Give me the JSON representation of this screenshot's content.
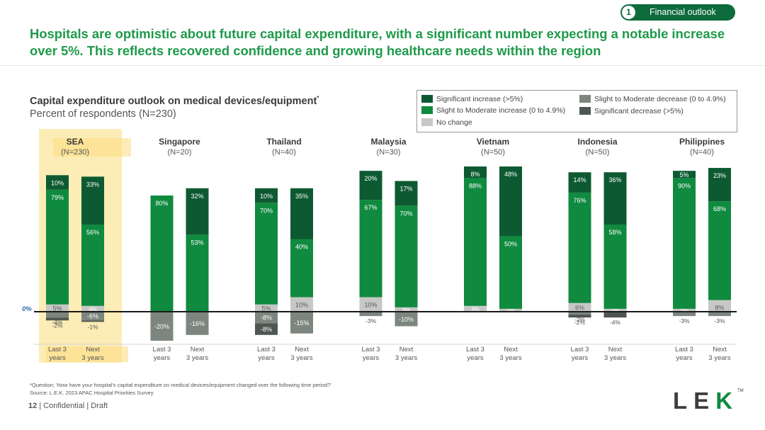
{
  "header": {
    "tag_number": "1",
    "tag_label": "Financial outlook",
    "headline": "Hospitals are optimistic about future capital expenditure, with a significant number expecting a notable increase over 5%. This reflects recovered confidence and growing healthcare needs within the region"
  },
  "colors": {
    "headline_green": "#1e9a4a",
    "significant_increase": "#0d5a32",
    "moderate_increase": "#0f8a3f",
    "no_change": "#c6c8c6",
    "moderate_decrease": "#7d857f",
    "significant_decrease": "#4e5651",
    "highlight": "#fce9a8"
  },
  "chart_data": {
    "type": "bar",
    "stacked": true,
    "title": "Capital expenditure outlook on medical devices/equipment",
    "title_marker": "*",
    "subtitle": "Percent of respondents (N=230)",
    "zero_label": "0%",
    "ylim": [
      -30,
      100
    ],
    "legend_position": "top-right",
    "legend": [
      {
        "key": "sig_inc",
        "label": "Significant increase (>5%)",
        "color": "#0d5a32"
      },
      {
        "key": "mod_inc",
        "label": "Slight to Moderate increase (0 to 4.9%)",
        "color": "#0f8a3f"
      },
      {
        "key": "no_change",
        "label": "No change",
        "color": "#c6c8c6"
      },
      {
        "key": "mod_dec",
        "label": "Slight to Moderate decrease (0 to 4.9%)",
        "color": "#7d857f"
      },
      {
        "key": "sig_dec",
        "label": "Significant decrease (>5%)",
        "color": "#4e5651"
      }
    ],
    "groups": [
      {
        "name": "SEA",
        "n": "(N=230)",
        "highlight": true,
        "bars": [
          {
            "label": [
              "Last 3",
              "years"
            ],
            "sig_inc": 10,
            "mod_inc": 79,
            "no_change": 5,
            "mod_dec": -4,
            "sig_dec": -2
          },
          {
            "label": [
              "Next",
              "3 years"
            ],
            "sig_inc": 33,
            "mod_inc": 56,
            "no_change": 4,
            "mod_dec": -6,
            "sig_dec": -1
          }
        ]
      },
      {
        "name": "Singapore",
        "n": "(N=20)",
        "highlight": false,
        "bars": [
          {
            "label": [
              "Last 3",
              "years"
            ],
            "sig_inc": 0,
            "mod_inc": 80,
            "no_change": 0,
            "mod_dec": -20,
            "sig_dec": 0
          },
          {
            "label": [
              "Next",
              "3 years"
            ],
            "sig_inc": 32,
            "mod_inc": 53,
            "no_change": 0,
            "mod_dec": -16,
            "sig_dec": 0
          }
        ]
      },
      {
        "name": "Thailand",
        "n": "(N=40)",
        "highlight": false,
        "bars": [
          {
            "label": [
              "Last 3",
              "years"
            ],
            "sig_inc": 10,
            "mod_inc": 70,
            "no_change": 5,
            "mod_dec": -8,
            "sig_dec": -8
          },
          {
            "label": [
              "Next",
              "3 years"
            ],
            "sig_inc": 35,
            "mod_inc": 40,
            "no_change": 10,
            "mod_dec": -15,
            "sig_dec": 0
          }
        ]
      },
      {
        "name": "Malaysia",
        "n": "(N=30)",
        "highlight": false,
        "bars": [
          {
            "label": [
              "Last 3",
              "years"
            ],
            "sig_inc": 20,
            "mod_inc": 67,
            "no_change": 10,
            "mod_dec": -3,
            "sig_dec": 0
          },
          {
            "label": [
              "Next",
              "3 years"
            ],
            "sig_inc": 17,
            "mod_inc": 70,
            "no_change": 3,
            "mod_dec": -10,
            "sig_dec": 0
          }
        ]
      },
      {
        "name": "Vietnam",
        "n": "(N=50)",
        "highlight": false,
        "bars": [
          {
            "label": [
              "Last 3",
              "years"
            ],
            "sig_inc": 8,
            "mod_inc": 88,
            "no_change": 4,
            "mod_dec": 0,
            "sig_dec": 0
          },
          {
            "label": [
              "Next",
              "3 years"
            ],
            "sig_inc": 48,
            "mod_inc": 50,
            "no_change": 2,
            "mod_dec": 0,
            "sig_dec": 0
          }
        ]
      },
      {
        "name": "Indonesia",
        "n": "(N=50)",
        "highlight": false,
        "bars": [
          {
            "label": [
              "Last 3",
              "years"
            ],
            "sig_inc": 14,
            "mod_inc": 76,
            "no_change": 6,
            "mod_dec": -2,
            "sig_dec": -2
          },
          {
            "label": [
              "Next",
              "3 years"
            ],
            "sig_inc": 36,
            "mod_inc": 58,
            "no_change": 2,
            "mod_dec": 0,
            "sig_dec": -4
          }
        ]
      },
      {
        "name": "Philippines",
        "n": "(N=40)",
        "highlight": false,
        "bars": [
          {
            "label": [
              "Last 3",
              "years"
            ],
            "sig_inc": 5,
            "mod_inc": 90,
            "no_change": 2,
            "mod_dec": -3,
            "sig_dec": 0
          },
          {
            "label": [
              "Next",
              "3 years"
            ],
            "sig_inc": 23,
            "mod_inc": 68,
            "no_change": 8,
            "mod_dec": -3,
            "sig_dec": 0
          }
        ]
      }
    ]
  },
  "footnote": "*Question: 'How have your hospital's capital expenditure on medical devices/equipment changed over the following time period?'",
  "source": "Source: L.E.K. 2023 APAC Hospital Priorities Survey",
  "footer": {
    "page": "12",
    "text": "| Confidential | Draft"
  },
  "logo": {
    "text": "LEK",
    "tm": "TM"
  }
}
